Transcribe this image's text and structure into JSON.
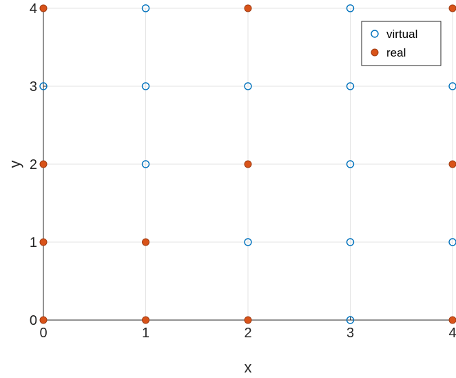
{
  "chart_data": {
    "type": "scatter",
    "xlabel": "x",
    "ylabel": "y",
    "xlim": [
      0,
      4
    ],
    "ylim": [
      0,
      4
    ],
    "x_ticks": [
      "0",
      "1",
      "2",
      "3",
      "4"
    ],
    "y_ticks": [
      "0",
      "1",
      "2",
      "3",
      "4"
    ],
    "grid": true,
    "legend_position": "top-right",
    "series": [
      {
        "name": "virtual",
        "marker": "open-circle",
        "color": "#0072BD",
        "points": [
          {
            "x": 0,
            "y": 3
          },
          {
            "x": 1,
            "y": 4
          },
          {
            "x": 1,
            "y": 3
          },
          {
            "x": 1,
            "y": 2
          },
          {
            "x": 2,
            "y": 3
          },
          {
            "x": 2,
            "y": 1
          },
          {
            "x": 3,
            "y": 4
          },
          {
            "x": 3,
            "y": 3
          },
          {
            "x": 3,
            "y": 2
          },
          {
            "x": 3,
            "y": 1
          },
          {
            "x": 3,
            "y": 0
          },
          {
            "x": 4,
            "y": 3
          },
          {
            "x": 4,
            "y": 1
          }
        ]
      },
      {
        "name": "real",
        "marker": "filled-circle",
        "color": "#D95319",
        "points": [
          {
            "x": 0,
            "y": 4
          },
          {
            "x": 0,
            "y": 2
          },
          {
            "x": 0,
            "y": 1
          },
          {
            "x": 0,
            "y": 0
          },
          {
            "x": 1,
            "y": 1
          },
          {
            "x": 1,
            "y": 0
          },
          {
            "x": 2,
            "y": 4
          },
          {
            "x": 2,
            "y": 2
          },
          {
            "x": 2,
            "y": 0
          },
          {
            "x": 4,
            "y": 4
          },
          {
            "x": 4,
            "y": 2
          },
          {
            "x": 4,
            "y": 0
          }
        ]
      }
    ]
  }
}
